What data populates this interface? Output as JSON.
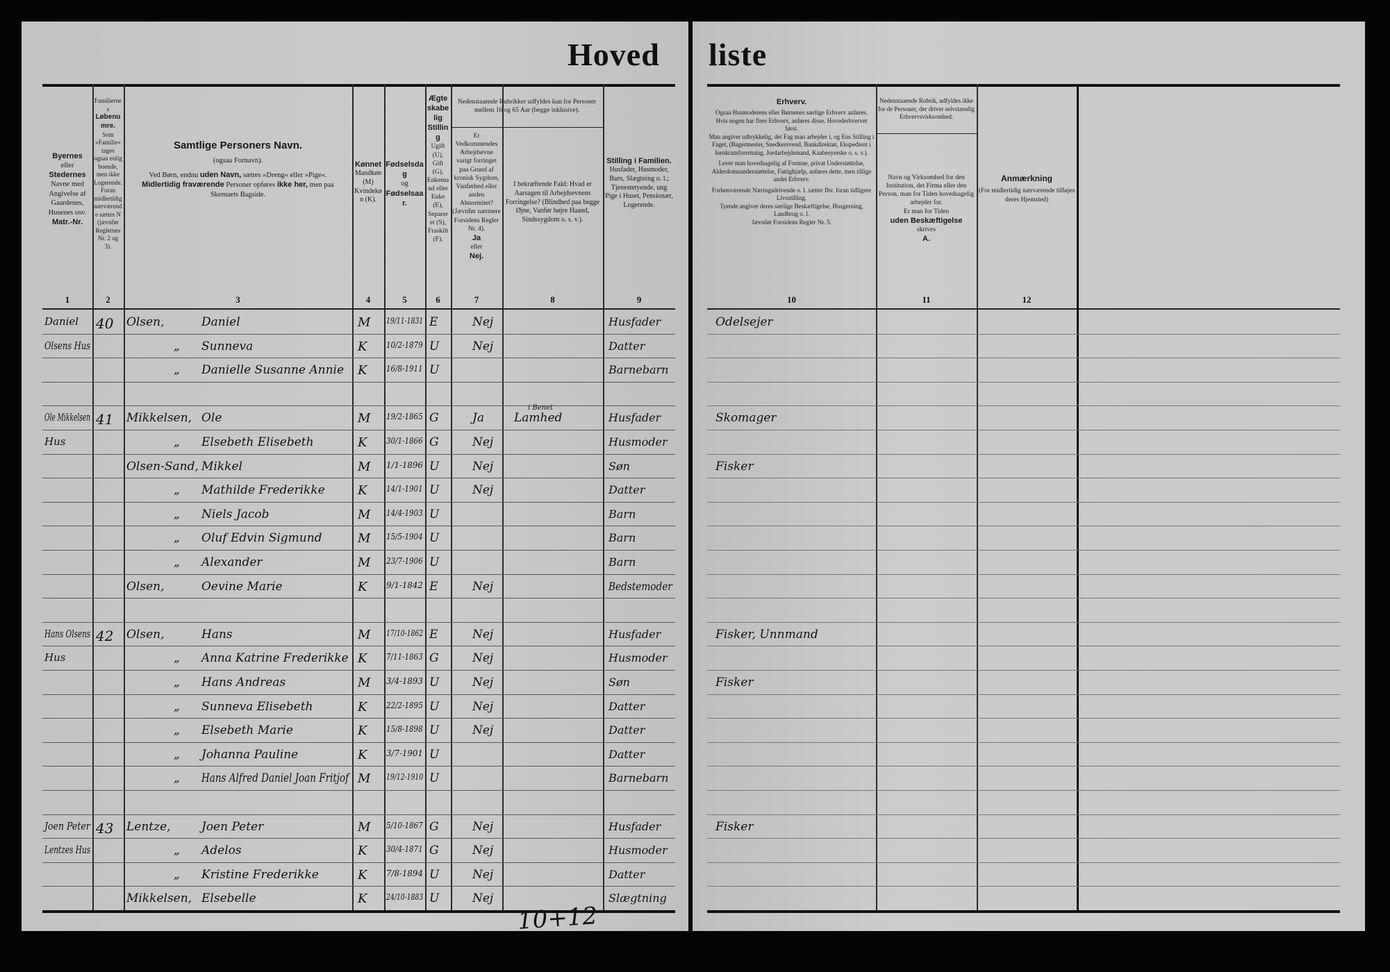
{
  "title": {
    "left": "Hoved",
    "right": "liste"
  },
  "headers": {
    "col1": {
      "bold1": "Byernes",
      "text1": "eller",
      "bold2": "Stedernes",
      "text2": "Navne med Angivelse af Gaardenes, Husenes osv.",
      "bold3": "Matr.-Nr.",
      "num": "1"
    },
    "col2": {
      "text1": "Familiernes",
      "bold1": "Løbenumre.",
      "text2": "Som »Familie« tages ogsaa enlig boende, men ikke Logerende. Foran midlertidig nærværende sættes N (jævnfør Reglernes Nr. 2 og 3).",
      "num": "2"
    },
    "col3": {
      "title": "Samtlige Personers Navn.",
      "line1": "(ogsaa Fornavn).",
      "line2a": "Ved Børn, endnu",
      "line2b": "uden Navn,",
      "line2c": "sættes »Dreng« eller »Pige«.",
      "line3a": "Midlertidig fraværende",
      "line3b": "Personer opføres",
      "line3c": "ikke her,",
      "line3d": "men paa Skemaets Bagside.",
      "num": "3"
    },
    "col4": {
      "bold": "Kønnet",
      "text": "Mandkøn (M) Kvindekøn (K).",
      "num": "4"
    },
    "col5": {
      "bold1": "Fødselsdag",
      "text": "og",
      "bold2": "Fødselsaar.",
      "num": "5"
    },
    "col6": {
      "bold": "Ægteskabelig Stilling",
      "text": "Ugift (U), Gift (G), Enkemand eller Enke (E), Separeret (S), Fraskilt (F).",
      "num": "6"
    },
    "group78": "Nedenstaaende Rubrikker udfyldes kun for Personer mellem 16 og 65 Aar (begge inklusive).",
    "col7": {
      "text": "Er Vedkommendes Arbejdsevne varigt forringet paa Grund af kronisk Sygdom, Vanførhed eller anden Abnormitet? (Jævnfør nærmere Forsidens Regler Nr. 4).",
      "bold1": "Ja",
      "text2": "eller",
      "bold2": "Nej.",
      "num": "7"
    },
    "col8": {
      "text": "I bekræftende Fald: Hvad er Aarsagen til Arbejdsevnens Forringelse? (Blindhed paa begge Øjne, Vanfør højre Haand, Sindssygdom o. s. v.).",
      "num": "8"
    },
    "col9": {
      "bold": "Stilling i Familien.",
      "text": "Husfader, Husmoder, Barn, Slægtning o. l.; Tjenestetyende, ung Pige i Huset, Pensionær, Logerende.",
      "num": "9"
    },
    "col10": {
      "bold": "Erhverv.",
      "p1": "Ogsaa Husmoderens eller Børnenes særlige Erhverv anføres.",
      "p2": "Hvis nogen har flere Erhverv, anføres disse. Hovederhvervet først.",
      "p3": "Man angiver udtrykkelig, det Fag man arbejder i, og Ens Stilling i Faget, (Bagermester, Snedkersvend, Bankdirektør, Ekspedient i Isenkramforretning, Jordarbejdsmand, Kaabesyerske o. s. v.).",
      "p4": "Lever man hovedsagelig af Formue, privat Understøttelse, Alderdomsunderstøttelse, Fattighjælp, anføres dette, men tillige andet Erhverv.",
      "p5": "Forhenværende Næringsdrivende o. l. sætter fhv. foran tidligere Livsstilling.",
      "p6": "Tyende angiver deres særlige Beskæftigelse, Husgerning, Landbrug o. l.",
      "p7": "Jævnfør Forsidens Regler Nr. 5.",
      "num": "10"
    },
    "col11": {
      "top": "Nedenstaaende Rubrik, udfyldes ikke for de Personer, der driver selvstændig Erhvervsvirksomhed.",
      "main": "Navn og Virksomhed for den Institution, det Firma eller den Person, man for Tiden hovedsagelig arbejder for.",
      "main2": "Er man for Tiden",
      "bold": "uden Beskæftigelse",
      "main3": "skrives",
      "letter": "A.",
      "num": "11"
    },
    "col12": {
      "bold": "Anmærkning",
      "text": "(For midlertidig nærværende tilføjes deres Hjemsted)",
      "num": "12"
    }
  },
  "rows": [
    {
      "addr": "Daniel",
      "fam": "40",
      "surname": "Olsen,",
      "given": "Daniel",
      "sex": "M",
      "born": "19/11-1831",
      "civil": "E",
      "work": "Nej",
      "cause": "",
      "role": "Husfader",
      "occ": "Odelsejer"
    },
    {
      "addr": "Olsens Hus",
      "fam": "",
      "surname": "„",
      "given": "Sunneva",
      "sex": "K",
      "born": "10/2-1879",
      "civil": "U",
      "work": "Nej",
      "cause": "",
      "role": "Datter",
      "occ": ""
    },
    {
      "addr": "",
      "fam": "",
      "surname": "„",
      "given": "Danielle Susanne Annie",
      "sex": "K",
      "born": "16/8-1911",
      "civil": "U",
      "work": "",
      "cause": "",
      "role": "Barnebarn",
      "occ": ""
    },
    {
      "addr": "",
      "fam": "",
      "surname": "",
      "given": "",
      "sex": "",
      "born": "",
      "civil": "",
      "work": "",
      "cause": "",
      "role": "",
      "occ": ""
    },
    {
      "addr": "Ole Mikkelsen",
      "fam": "41",
      "surname": "Mikkelsen,",
      "given": "Ole",
      "sex": "M",
      "born": "19/2-1865",
      "civil": "G",
      "work": "Ja",
      "cause": "Lamhed",
      "cause_sup": "i Benet",
      "role": "Husfader",
      "occ": "Skomager"
    },
    {
      "addr": "Hus",
      "fam": "",
      "surname": "„",
      "given": "Elsebeth Elisebeth",
      "sex": "K",
      "born": "30/1-1866",
      "civil": "G",
      "work": "Nej",
      "cause": "",
      "role": "Husmoder",
      "occ": ""
    },
    {
      "addr": "",
      "fam": "",
      "surname": "Olsen-Sand,",
      "given": "Mikkel",
      "sex": "M",
      "born": "1/1-1896",
      "civil": "U",
      "work": "Nej",
      "cause": "",
      "role": "Søn",
      "occ": "Fisker"
    },
    {
      "addr": "",
      "fam": "",
      "surname": "„",
      "given": "Mathilde Frederikke",
      "sex": "K",
      "born": "14/1-1901",
      "civil": "U",
      "work": "Nej",
      "cause": "",
      "role": "Datter",
      "occ": ""
    },
    {
      "addr": "",
      "fam": "",
      "surname": "„",
      "given": "Niels Jacob",
      "sex": "M",
      "born": "14/4-1903",
      "civil": "U",
      "work": "",
      "cause": "",
      "role": "Barn",
      "occ": ""
    },
    {
      "addr": "",
      "fam": "",
      "surname": "„",
      "given": "Oluf Edvin Sigmund",
      "sex": "M",
      "born": "15/5-1904",
      "civil": "U",
      "work": "",
      "cause": "",
      "role": "Barn",
      "occ": ""
    },
    {
      "addr": "",
      "fam": "",
      "surname": "„",
      "given": "Alexander",
      "sex": "M",
      "born": "23/7-1906",
      "civil": "U",
      "work": "",
      "cause": "",
      "role": "Barn",
      "occ": ""
    },
    {
      "addr": "",
      "fam": "",
      "surname": "Olsen,",
      "given": "Oevine Marie",
      "sex": "K",
      "born": "9/1-1842",
      "civil": "E",
      "work": "Nej",
      "cause": "",
      "role": "Bedstemoder",
      "occ": ""
    },
    {
      "addr": "",
      "fam": "",
      "surname": "",
      "given": "",
      "sex": "",
      "born": "",
      "civil": "",
      "work": "",
      "cause": "",
      "role": "",
      "occ": ""
    },
    {
      "addr": "Hans Olsens",
      "fam": "42",
      "surname": "Olsen,",
      "given": "Hans",
      "sex": "M",
      "born": "17/10-1862",
      "civil": "E",
      "work": "Nej",
      "cause": "",
      "role": "Husfader",
      "occ": "Fisker, Unnmand"
    },
    {
      "addr": "Hus",
      "fam": "",
      "surname": "„",
      "given": "Anna Katrine Frederikke",
      "sex": "K",
      "born": "7/11-1863",
      "civil": "G",
      "work": "Nej",
      "cause": "",
      "role": "Husmoder",
      "occ": ""
    },
    {
      "addr": "",
      "fam": "",
      "surname": "„",
      "given": "Hans Andreas",
      "sex": "M",
      "born": "3/4-1893",
      "civil": "U",
      "work": "Nej",
      "cause": "",
      "role": "Søn",
      "occ": "Fisker"
    },
    {
      "addr": "",
      "fam": "",
      "surname": "„",
      "given": "Sunneva Elisebeth",
      "sex": "K",
      "born": "22/2-1895",
      "civil": "U",
      "work": "Nej",
      "cause": "",
      "role": "Datter",
      "occ": ""
    },
    {
      "addr": "",
      "fam": "",
      "surname": "„",
      "given": "Elsebeth Marie",
      "sex": "K",
      "born": "15/8-1898",
      "civil": "U",
      "work": "Nej",
      "cause": "",
      "role": "Datter",
      "occ": ""
    },
    {
      "addr": "",
      "fam": "",
      "surname": "„",
      "given": "Johanna Pauline",
      "sex": "K",
      "born": "3/7-1901",
      "civil": "U",
      "work": "",
      "cause": "",
      "role": "Datter",
      "occ": ""
    },
    {
      "addr": "",
      "fam": "",
      "surname": "„",
      "given": "Hans Alfred Daniel Joan Fritjof",
      "sex": "M",
      "born": "19/12-1910",
      "civil": "U",
      "work": "",
      "cause": "",
      "role": "Barnebarn",
      "occ": ""
    },
    {
      "addr": "",
      "fam": "",
      "surname": "",
      "given": "",
      "sex": "",
      "born": "",
      "civil": "",
      "work": "",
      "cause": "",
      "role": "",
      "occ": ""
    },
    {
      "addr": "Joen Peter",
      "fam": "43",
      "surname": "Lentze,",
      "given": "Joen Peter",
      "sex": "M",
      "born": "5/10-1867",
      "civil": "G",
      "work": "Nej",
      "cause": "",
      "role": "Husfader",
      "occ": "Fisker"
    },
    {
      "addr": "Lentzes Hus",
      "fam": "",
      "surname": "„",
      "given": "Adelos",
      "sex": "K",
      "born": "30/4-1871",
      "civil": "G",
      "work": "Nej",
      "cause": "",
      "role": "Husmoder",
      "occ": ""
    },
    {
      "addr": "",
      "fam": "",
      "surname": "„",
      "given": "Kristine Frederikke",
      "sex": "K",
      "born": "7/8-1894",
      "civil": "U",
      "work": "Nej",
      "cause": "",
      "role": "Datter",
      "occ": ""
    },
    {
      "addr": "",
      "fam": "",
      "surname": "Mikkelsen,",
      "given": "Elsebelle",
      "sex": "K",
      "born": "24/10-1883",
      "civil": "U",
      "work": "Nej",
      "cause": "",
      "role": "Slægtning",
      "occ": ""
    }
  ],
  "tally": "10+12"
}
